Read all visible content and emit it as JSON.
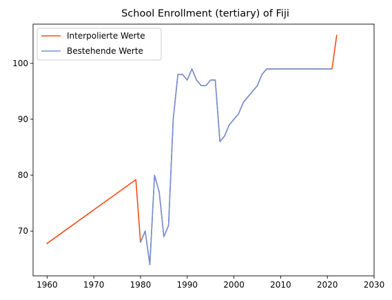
{
  "chart_data": {
    "type": "line",
    "title": "School Enrollment (tertiary) of Fiji",
    "xlabel": "",
    "ylabel": "",
    "xlim": [
      1957,
      2030
    ],
    "ylim": [
      62,
      107
    ],
    "xticks": [
      1960,
      1970,
      1980,
      1990,
      2000,
      2010,
      2020,
      2030
    ],
    "yticks": [
      70,
      80,
      90,
      100
    ],
    "grid": false,
    "legend_position": "top-left",
    "series": [
      {
        "name": "Interpolierte Werte",
        "color": "#f14b14",
        "x": [
          1960,
          1979,
          1980,
          1981,
          1982,
          1983,
          1984,
          1985,
          1986,
          1987,
          1988,
          1989,
          1990,
          1991,
          1992,
          1993,
          1994,
          1995,
          1996,
          1997,
          1998,
          1999,
          2000,
          2001,
          2002,
          2003,
          2004,
          2005,
          2006,
          2007,
          2008,
          2009,
          2010,
          2011,
          2012,
          2013,
          2014,
          2015,
          2016,
          2017,
          2018,
          2019,
          2020,
          2021,
          2022
        ],
        "y": [
          67.8,
          79.2,
          68,
          70,
          64,
          80,
          77,
          69,
          71,
          90,
          98,
          98,
          97,
          99,
          97,
          96,
          96,
          97,
          97,
          86,
          87,
          89,
          90,
          91,
          93,
          94,
          95,
          96,
          98,
          99,
          99,
          99,
          99,
          99,
          99,
          99,
          99,
          99,
          99,
          99,
          99,
          99,
          99,
          99,
          105
        ]
      },
      {
        "name": "Bestehende Werte",
        "color": "#7094dd",
        "x": [
          1980,
          1981,
          1982,
          1983,
          1984,
          1985,
          1986,
          1987,
          1988,
          1989,
          1990,
          1991,
          1992,
          1993,
          1994,
          1995,
          1996,
          1997,
          1998,
          1999,
          2000,
          2001,
          2002,
          2003,
          2004,
          2005,
          2006,
          2007,
          2008,
          2009,
          2010,
          2011,
          2012,
          2013,
          2014,
          2015,
          2016,
          2017,
          2018,
          2019,
          2020,
          2021
        ],
        "y": [
          68,
          70,
          64,
          80,
          77,
          69,
          71,
          90,
          98,
          98,
          97,
          99,
          97,
          96,
          96,
          97,
          97,
          86,
          87,
          89,
          90,
          91,
          93,
          94,
          95,
          96,
          98,
          99,
          99,
          99,
          99,
          99,
          99,
          99,
          99,
          99,
          99,
          99,
          99,
          99,
          99,
          99
        ]
      }
    ]
  }
}
